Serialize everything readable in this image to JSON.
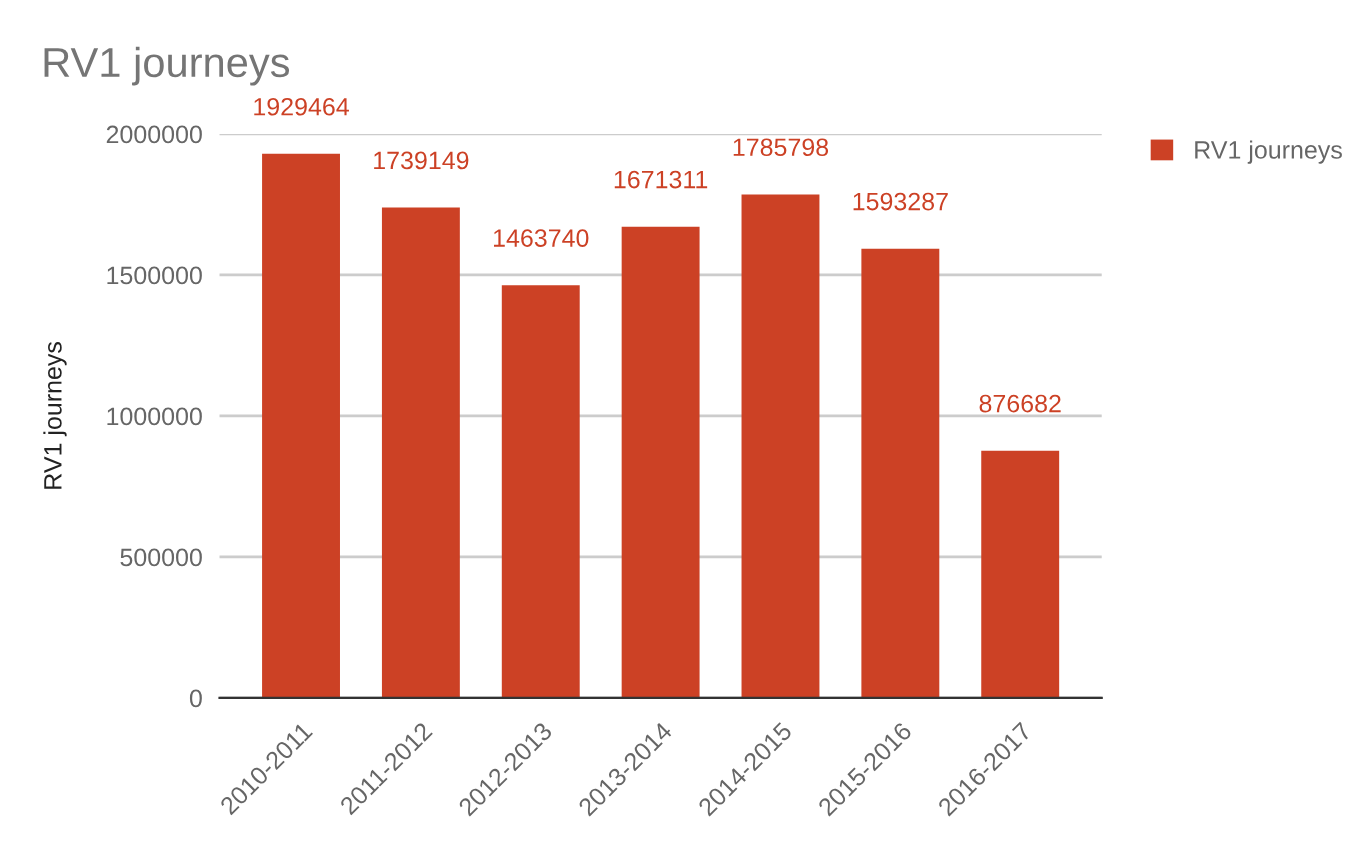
{
  "chart_data": {
    "type": "bar",
    "title": "RV1 journeys",
    "ylabel": "RV1 journeys",
    "categories": [
      "2010-2011",
      "2011-2012",
      "2012-2013",
      "2013-2014",
      "2014-2015",
      "2015-2016",
      "2016-2017"
    ],
    "series": [
      {
        "name": "RV1 journeys",
        "color": "#cc4125",
        "values": [
          1929464,
          1739149,
          1463740,
          1671311,
          1785798,
          1593287,
          876682
        ]
      }
    ],
    "ylim": [
      0,
      2000000
    ],
    "yticks": [
      0,
      500000,
      1000000,
      1500000,
      2000000
    ],
    "grid": "y",
    "legend": "right",
    "data_labels": true
  }
}
